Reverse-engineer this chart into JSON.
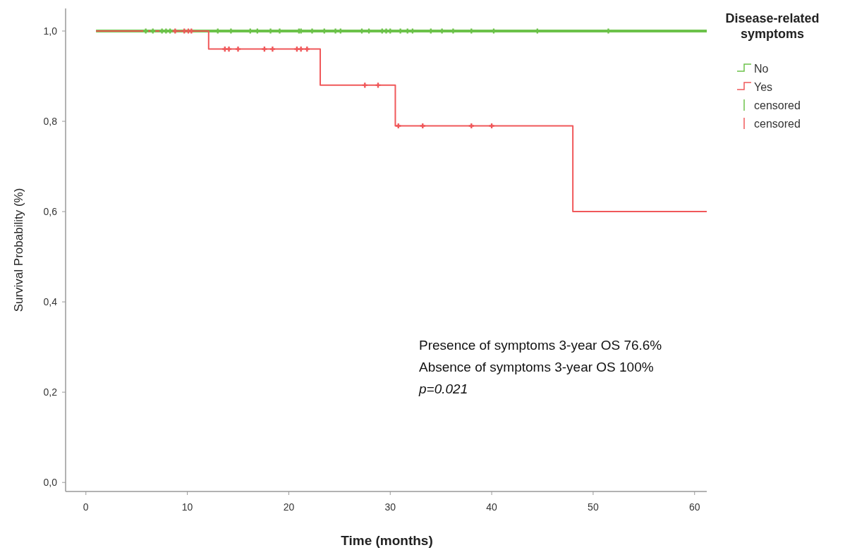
{
  "chart_data": {
    "type": "step",
    "xlabel": "Time (months)",
    "ylabel": "Survival Probability (%)",
    "legend_title": "Disease-related symptoms",
    "legend": "top right",
    "grid": false,
    "xlim": [
      -2,
      61.2
    ],
    "ylim": [
      -0.02,
      1.05
    ],
    "xticks": [
      0,
      10,
      20,
      30,
      40,
      50,
      60
    ],
    "yticks": [
      {
        "value": 0,
        "label": "0,0"
      },
      {
        "value": 0.2,
        "label": "0,2"
      },
      {
        "value": 0.4,
        "label": "0,4"
      },
      {
        "value": 0.6,
        "label": "0,6"
      },
      {
        "value": 0.8,
        "label": "0,8"
      },
      {
        "value": 1,
        "label": "1,0"
      }
    ],
    "series": [
      {
        "name": "No",
        "color": "#6cc24a",
        "x": [
          1,
          61.2
        ],
        "values": [
          1,
          1
        ]
      },
      {
        "name": "Yes",
        "color": "#f0585a",
        "x": [
          1,
          12.1,
          23.1,
          30.5,
          48.0,
          61.2
        ],
        "values": [
          1,
          0.96,
          0.88,
          0.79,
          0.6,
          0.6
        ]
      },
      {
        "name": "censored",
        "color": "#6cc24a",
        "type": "scatter",
        "marker": "cross",
        "x": [
          5.9,
          6.6,
          7.5,
          7.9,
          8.3,
          13.0,
          14.3,
          16.2,
          16.9,
          18.2,
          19.1,
          21.0,
          21.2,
          22.3,
          23.5,
          24.6,
          25.1,
          27.2,
          27.9,
          29.2,
          29.6,
          30.0,
          31.0,
          31.7,
          32.2,
          34.0,
          35.1,
          36.2,
          38.0,
          40.2,
          44.5,
          51.5
        ],
        "values": [
          1,
          1,
          1,
          1,
          1,
          1,
          1,
          1,
          1,
          1,
          1,
          1,
          1,
          1,
          1,
          1,
          1,
          1,
          1,
          1,
          1,
          1,
          1,
          1,
          1,
          1,
          1,
          1,
          1,
          1,
          1,
          1
        ]
      },
      {
        "name": "censored",
        "color": "#f0585a",
        "type": "scatter",
        "marker": "cross",
        "x": [
          8.8,
          9.7,
          10.1,
          10.4,
          13.7,
          14.1,
          15.0,
          17.6,
          18.4,
          20.8,
          21.2,
          21.8,
          27.5,
          28.8,
          30.8,
          33.2,
          38.0,
          40.0
        ],
        "values": [
          1,
          1,
          1,
          1,
          0.96,
          0.96,
          0.96,
          0.96,
          0.96,
          0.96,
          0.96,
          0.96,
          0.88,
          0.88,
          0.79,
          0.79,
          0.79,
          0.79
        ]
      }
    ],
    "annotations": [
      "Presence of symptoms 3-year OS 76.6%",
      "Absence of symptoms 3-year OS 100%",
      "p=0.021"
    ]
  }
}
